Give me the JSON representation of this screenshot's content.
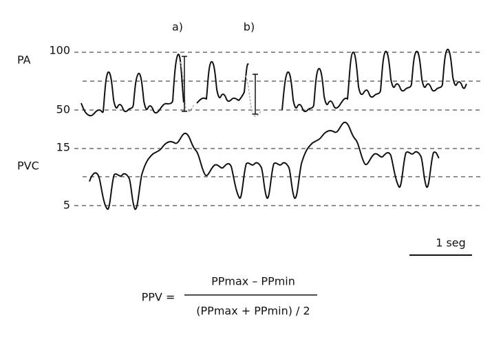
{
  "labels": {
    "a": "a)",
    "b": "b)",
    "pa": "PA",
    "pvc": "PVC"
  },
  "pa_ticks": [
    "100",
    "50"
  ],
  "pvc_ticks": [
    "15",
    "5"
  ],
  "scale_bar": "1 seg",
  "formula": {
    "lhs": "PPV =",
    "numerator": "PPmax – PPmin",
    "denominator": "(PPmax + PPmin) / 2"
  }
}
